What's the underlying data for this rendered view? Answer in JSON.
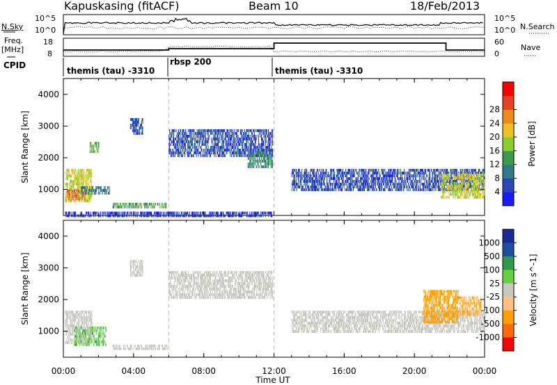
{
  "header": {
    "station": "Kapuskasing (fitACF)",
    "beam": "Beam 10",
    "date": "18/Feb/2013"
  },
  "noise_panel": {
    "left_label": "N.Sky",
    "right_label": "N.Search",
    "left_ticks": [
      "10^5",
      "10^0"
    ],
    "right_ticks": [
      "10^5",
      "10^0"
    ]
  },
  "freq_panel": {
    "left_label_1": "Freq.",
    "left_label_2": "[MHz]",
    "right_label": "Nave",
    "left_ticks": [
      "18",
      "8"
    ],
    "right_ticks": [
      "60",
      "0"
    ]
  },
  "cpid": {
    "label": "CPID",
    "segments": [
      {
        "name": "themis (tau) -3310",
        "start_hour": 0,
        "end_hour": 6
      },
      {
        "name": "rbsp 200",
        "start_hour": 6,
        "end_hour": 12
      },
      {
        "name": "themis (tau) -3310",
        "start_hour": 12,
        "end_hour": 24
      }
    ]
  },
  "colors": {
    "power": [
      "#1a1aff",
      "#2a46b8",
      "#2f7a86",
      "#3d9a4c",
      "#8ccf2a",
      "#f0c020",
      "#f08a1a",
      "#e84020",
      "#ff0000"
    ],
    "velocity_bins": [
      "#ff0000",
      "#ff6a00",
      "#ffa000",
      "#ffc080",
      "#c8c8c0",
      "#66d040",
      "#2e9a4a",
      "#1e4ea0",
      "#1a2a9a"
    ],
    "ground_scatter": "#c8c8c0"
  },
  "chart_data": [
    {
      "type": "heatmap",
      "title": "",
      "xlabel": "Time UT",
      "ylabel": "Slant Range [km]",
      "colorbar_label": "Power [dB]",
      "colorbar_ticks": [
        "4",
        "8",
        "12",
        "16",
        "20",
        "24",
        "28"
      ],
      "xlim": [
        0,
        24
      ],
      "ylim": [
        180,
        4500
      ],
      "x_ticks": [
        "00:00",
        "04:00",
        "08:00",
        "12:00",
        "16:00",
        "20:00",
        "00:00"
      ],
      "y_ticks": [
        "1000",
        "2000",
        "3000",
        "4000"
      ],
      "regions": [
        {
          "x": [
            0.1,
            1.6
          ],
          "y": [
            620,
            1650
          ],
          "power": 20
        },
        {
          "x": [
            0.2,
            1.2
          ],
          "y": [
            650,
            1000
          ],
          "power": 28
        },
        {
          "x": [
            1.5,
            2.0
          ],
          "y": [
            2150,
            2500
          ],
          "power": 16
        },
        {
          "x": [
            2.8,
            5.9
          ],
          "y": [
            420,
            580
          ],
          "power": 14
        },
        {
          "x": [
            3.8,
            4.5
          ],
          "y": [
            2800,
            3250
          ],
          "power": 6
        },
        {
          "x": [
            6.0,
            11.9
          ],
          "y": [
            2050,
            2900
          ],
          "power": 6
        },
        {
          "x": [
            10.5,
            11.9
          ],
          "y": [
            1750,
            2200
          ],
          "power": 12
        },
        {
          "x": [
            1.0,
            2.6
          ],
          "y": [
            850,
            1100
          ],
          "power": 10
        },
        {
          "x": [
            13.0,
            24.0
          ],
          "y": [
            1000,
            1650
          ],
          "power": 6
        },
        {
          "x": [
            21.5,
            24.0
          ],
          "y": [
            750,
            1500
          ],
          "power": 20
        },
        {
          "x": [
            0.1,
            11.9
          ],
          "y": [
            200,
            300
          ],
          "power": 4
        }
      ]
    },
    {
      "type": "heatmap",
      "title": "",
      "xlabel": "Time UT",
      "ylabel": "Slant Range [km]",
      "colorbar_label": "Velocity [m s^-1]",
      "colorbar_ticks": [
        "1000",
        "500",
        "100",
        "25",
        "-25",
        "-100",
        "-500",
        "-1000"
      ],
      "xlim": [
        0,
        24
      ],
      "ylim": [
        180,
        4500
      ],
      "x_ticks": [
        "00:00",
        "04:00",
        "08:00",
        "12:00",
        "16:00",
        "20:00",
        "00:00"
      ],
      "y_ticks": [
        "1000",
        "2000",
        "3000",
        "4000"
      ],
      "regions": [
        {
          "x": [
            0.1,
            1.6
          ],
          "y": [
            600,
            1650
          ],
          "velocity": 0
        },
        {
          "x": [
            0.6,
            2.4
          ],
          "y": [
            600,
            1150
          ],
          "velocity": 60
        },
        {
          "x": [
            2.8,
            5.9
          ],
          "y": [
            420,
            580
          ],
          "velocity": 0
        },
        {
          "x": [
            3.8,
            4.5
          ],
          "y": [
            2800,
            3250
          ],
          "velocity": 0
        },
        {
          "x": [
            6.0,
            11.9
          ],
          "y": [
            2050,
            2900
          ],
          "velocity": 0
        },
        {
          "x": [
            13.0,
            24.0
          ],
          "y": [
            1000,
            1650
          ],
          "velocity": 0
        },
        {
          "x": [
            20.5,
            22.5
          ],
          "y": [
            1300,
            2300
          ],
          "velocity": -300
        },
        {
          "x": [
            22.5,
            23.8
          ],
          "y": [
            1500,
            2100
          ],
          "velocity": -100
        }
      ]
    }
  ]
}
